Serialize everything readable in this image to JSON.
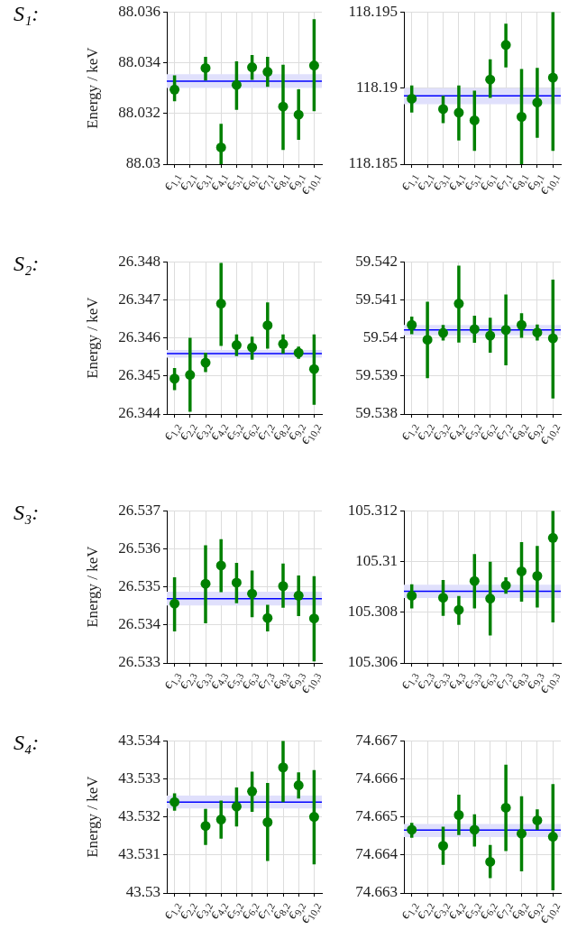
{
  "chart_data": [
    {
      "type": "scatter",
      "title": "S₁:",
      "ylabel": "Energy / keV",
      "categories": [
        "ϵ$_{1,1}$",
        "ϵ$_{2,1}$",
        "ϵ$_{3,1}$",
        "ϵ$_{4,1}$",
        "ϵ$_{5,1}$",
        "ϵ$_{6,1}$",
        "ϵ$_{7,1}$",
        "ϵ$_{8,1}$",
        "ϵ$_{9,1}$",
        "ϵ$_{10,1}$"
      ],
      "series": [
        {
          "color": "#008000",
          "values": [
            88.03294,
            null,
            88.03379,
            88.03066,
            88.03312,
            88.03382,
            88.03364,
            88.03227,
            88.03195,
            88.03389
          ],
          "errors": [
            [
              88.03248,
              88.0335
            ],
            null,
            [
              88.0333,
              88.03423
            ],
            [
              88.03,
              88.03159
            ],
            [
              88.03214,
              88.03405
            ],
            [
              88.03332,
              88.0343
            ],
            [
              88.03305,
              88.03423
            ],
            [
              88.03056,
              88.03392
            ],
            [
              88.03096,
              88.03295
            ],
            [
              88.03209,
              88.03571
            ]
          ]
        }
      ],
      "ylim": [
        88.03,
        88.036
      ],
      "yticks": [
        88.03,
        88.032,
        88.034,
        88.036
      ],
      "grid": true,
      "marker": "circle",
      "ref_lines": [
        {
          "axis": "y",
          "value": 88.03327,
          "color": "#0000ff"
        }
      ],
      "bands": [
        {
          "axis": "y",
          "from": 88.033,
          "to": 88.03355,
          "color": "#e0e0fc"
        }
      ]
    },
    {
      "type": "scatter",
      "categories": [
        "ϵ$_{1,1}$",
        "ϵ$_{2,1}$",
        "ϵ$_{3,1}$",
        "ϵ$_{4,1}$",
        "ϵ$_{5,1}$",
        "ϵ$_{6,1}$",
        "ϵ$_{7,1}$",
        "ϵ$_{8,1}$",
        "ϵ$_{9,1}$",
        "ϵ$_{10,1}$"
      ],
      "series": [
        {
          "color": "#008000",
          "values": [
            118.1893,
            null,
            118.18862,
            118.18839,
            118.18788,
            118.19056,
            118.19283,
            118.18811,
            118.18905,
            118.19068
          ],
          "errors": [
            [
              118.18839,
              118.19017
            ],
            null,
            [
              118.1877,
              118.18949
            ],
            [
              118.18656,
              118.19017
            ],
            [
              118.18587,
              118.18983
            ],
            [
              118.18935,
              118.19189
            ],
            [
              118.19136,
              118.19422
            ],
            [
              118.185,
              118.19125
            ],
            [
              118.18674,
              118.19132
            ],
            [
              118.18587,
              118.195
            ]
          ]
        }
      ],
      "ylim": [
        118.185,
        118.195
      ],
      "yticks": [
        118.185,
        118.19,
        118.195
      ],
      "grid": true,
      "marker": "circle",
      "ref_lines": [
        {
          "axis": "y",
          "value": 118.18949,
          "color": "#0000ff"
        }
      ],
      "bands": [
        {
          "axis": "y",
          "from": 118.18894,
          "to": 118.18999,
          "color": "#e0e0fc"
        }
      ]
    },
    {
      "type": "scatter",
      "title": "S₂:",
      "ylabel": "Energy / keV",
      "categories": [
        "ϵ$_{1,2}$",
        "ϵ$_{2,2}$",
        "ϵ$_{3,2}$",
        "ϵ$_{4,2}$",
        "ϵ$_{5,2}$",
        "ϵ$_{6,2}$",
        "ϵ$_{7,2}$",
        "ϵ$_{8,2}$",
        "ϵ$_{9,2}$",
        "ϵ$_{10,2}$"
      ],
      "series": [
        {
          "color": "#008000",
          "values": [
            26.34493,
            26.34503,
            26.34535,
            26.3469,
            26.34581,
            26.34575,
            26.34633,
            26.34584,
            26.34561,
            26.34518
          ],
          "errors": [
            [
              26.34463,
              26.34521
            ],
            [
              26.34406,
              26.346
            ],
            [
              26.3451,
              26.34561
            ],
            [
              26.34579,
              26.34797
            ],
            [
              26.34552,
              26.34609
            ],
            [
              26.34543,
              26.34603
            ],
            [
              26.34572,
              26.34693
            ],
            [
              26.34559,
              26.34609
            ],
            [
              26.34545,
              26.34577
            ],
            [
              26.34424,
              26.34609
            ]
          ]
        }
      ],
      "ylim": [
        26.344,
        26.348
      ],
      "yticks": [
        26.344,
        26.345,
        26.346,
        26.347,
        26.348
      ],
      "grid": true,
      "marker": "circle",
      "ref_lines": [
        {
          "axis": "y",
          "value": 26.34559,
          "color": "#0000ff"
        }
      ],
      "bands": [
        {
          "axis": "y",
          "from": 26.34548,
          "to": 26.34568,
          "color": "#e0e0fc"
        }
      ]
    },
    {
      "type": "scatter",
      "categories": [
        "ϵ$_{1,2}$",
        "ϵ$_{2,2}$",
        "ϵ$_{3,2}$",
        "ϵ$_{4,2}$",
        "ϵ$_{5,2}$",
        "ϵ$_{6,2}$",
        "ϵ$_{7,2}$",
        "ϵ$_{8,2}$",
        "ϵ$_{9,2}$",
        "ϵ$_{10,2}$"
      ],
      "series": [
        {
          "color": "#008000",
          "values": [
            59.54034,
            59.53995,
            59.54013,
            59.5409,
            59.54023,
            59.54006,
            59.54021,
            59.54034,
            59.54014,
            59.53999
          ],
          "errors": [
            [
              59.5401,
              59.54056
            ],
            [
              59.53894,
              59.54095
            ],
            [
              59.53993,
              59.54034
            ],
            [
              59.53988,
              59.5419
            ],
            [
              59.53987,
              59.54058
            ],
            [
              59.53961,
              59.54053
            ],
            [
              59.53928,
              59.54114
            ],
            [
              59.54,
              59.54065
            ],
            [
              59.53993,
              59.54035
            ],
            [
              59.53841,
              59.54153
            ]
          ]
        }
      ],
      "ylim": [
        59.538,
        59.542
      ],
      "yticks": [
        59.538,
        59.539,
        59.54,
        59.541,
        59.542
      ],
      "grid": true,
      "marker": "circle",
      "ref_lines": [
        {
          "axis": "y",
          "value": 59.54021,
          "color": "#0000ff"
        }
      ],
      "bands": [
        {
          "axis": "y",
          "from": 59.54007,
          "to": 59.54034,
          "color": "#e0e0fc"
        }
      ]
    },
    {
      "type": "scatter",
      "title": "S₃:",
      "ylabel": "Energy / keV",
      "categories": [
        "ϵ$_{1,3}$",
        "ϵ$_{2,3}$",
        "ϵ$_{3,3}$",
        "ϵ$_{4,3}$",
        "ϵ$_{5,3}$",
        "ϵ$_{6,3}$",
        "ϵ$_{7,3}$",
        "ϵ$_{8,3}$",
        "ϵ$_{9,3}$",
        "ϵ$_{10,3}$"
      ],
      "series": [
        {
          "color": "#008000",
          "values": [
            26.53456,
            null,
            26.53508,
            26.53556,
            26.53511,
            26.53482,
            26.53418,
            26.53502,
            26.53477,
            26.53417
          ],
          "errors": [
            [
              26.53383,
              26.53525
            ],
            null,
            [
              26.53404,
              26.53609
            ],
            [
              26.53486,
              26.53625
            ],
            [
              26.53457,
              26.53563
            ],
            [
              26.5342,
              26.53543
            ],
            [
              26.53383,
              26.53453
            ],
            [
              26.53445,
              26.53561
            ],
            [
              26.53423,
              26.5353
            ],
            [
              26.53304,
              26.53528
            ]
          ]
        }
      ],
      "ylim": [
        26.533,
        26.537
      ],
      "yticks": [
        26.533,
        26.534,
        26.535,
        26.536,
        26.537
      ],
      "grid": true,
      "marker": "circle",
      "ref_lines": [
        {
          "axis": "y",
          "value": 26.53469,
          "color": "#0000ff"
        }
      ],
      "bands": [
        {
          "axis": "y",
          "from": 26.53451,
          "to": 26.53487,
          "color": "#e0e0fc"
        }
      ]
    },
    {
      "type": "scatter",
      "categories": [
        "ϵ$_{1,3}$",
        "ϵ$_{2,3}$",
        "ϵ$_{3,3}$",
        "ϵ$_{4,3}$",
        "ϵ$_{5,3}$",
        "ϵ$_{6,3}$",
        "ϵ$_{7,3}$",
        "ϵ$_{8,3}$",
        "ϵ$_{9,3}$",
        "ϵ$_{10,3}$"
      ],
      "series": [
        {
          "color": "#008000",
          "values": [
            105.30865,
            null,
            105.30857,
            105.30809,
            105.30923,
            105.30854,
            105.30906,
            105.30961,
            105.30943,
            105.31093
          ],
          "errors": [
            [
              105.30815,
              105.3091
            ],
            null,
            [
              105.30786,
              105.30927
            ],
            [
              105.3075,
              105.30864
            ],
            [
              105.30815,
              105.31029
            ],
            [
              105.30708,
              105.30999
            ],
            [
              105.30873,
              105.30938
            ],
            [
              105.30842,
              105.31076
            ],
            [
              105.30819,
              105.31061
            ],
            [
              105.3076,
              105.312
            ]
          ]
        }
      ],
      "ylim": [
        105.306,
        105.312
      ],
      "yticks": [
        105.306,
        105.308,
        105.31,
        105.312
      ],
      "grid": true,
      "marker": "circle",
      "ref_lines": [
        {
          "axis": "y",
          "value": 105.30883,
          "color": "#0000ff"
        }
      ],
      "bands": [
        {
          "axis": "y",
          "from": 105.30856,
          "to": 105.30908,
          "color": "#e0e0fc"
        }
      ]
    },
    {
      "type": "scatter",
      "title": "S₄:",
      "ylabel": "Energy / keV",
      "categories": [
        "ϵ$_{1,2}$",
        "ϵ$_{2,2}$",
        "ϵ$_{3,2}$",
        "ϵ$_{4,2}$",
        "ϵ$_{5,2}$",
        "ϵ$_{6,2}$",
        "ϵ$_{7,2}$",
        "ϵ$_{8,2}$",
        "ϵ$_{9,2}$",
        "ϵ$_{10,2}$"
      ],
      "series": [
        {
          "color": "#008000",
          "values": [
            43.53239,
            null,
            43.53176,
            43.53193,
            43.53227,
            43.53267,
            43.53186,
            43.5333,
            43.53283,
            43.532
          ],
          "errors": [
            [
              43.53216,
              43.53262
            ],
            null,
            [
              43.53126,
              43.53221
            ],
            [
              43.53143,
              43.53243
            ],
            [
              43.53175,
              43.53277
            ],
            [
              43.53213,
              43.53319
            ],
            [
              43.53084,
              43.53289
            ],
            [
              43.53239,
              43.534
            ],
            [
              43.53248,
              43.53317
            ],
            [
              43.53075,
              43.53323
            ]
          ]
        }
      ],
      "ylim": [
        43.53,
        43.534
      ],
      "yticks": [
        43.53,
        43.531,
        43.532,
        43.533,
        43.534
      ],
      "grid": true,
      "marker": "circle",
      "ref_lines": [
        {
          "axis": "y",
          "value": 43.53239,
          "color": "#0000ff"
        }
      ],
      "bands": [
        {
          "axis": "y",
          "from": 43.53222,
          "to": 43.53256,
          "color": "#e0e0fc"
        }
      ]
    },
    {
      "type": "scatter",
      "categories": [
        "ϵ$_{1,2}$",
        "ϵ$_{2,2}$",
        "ϵ$_{3,2}$",
        "ϵ$_{4,2}$",
        "ϵ$_{5,2}$",
        "ϵ$_{6,2}$",
        "ϵ$_{7,2}$",
        "ϵ$_{8,2}$",
        "ϵ$_{9,2}$",
        "ϵ$_{10,2}$"
      ],
      "series": [
        {
          "color": "#008000",
          "values": [
            74.66466,
            null,
            74.66424,
            74.66505,
            74.66466,
            74.66382,
            74.66524,
            74.66456,
            74.66491,
            74.66448
          ],
          "errors": [
            [
              74.66445,
              74.66484
            ],
            null,
            [
              74.66374,
              74.66474
            ],
            [
              74.66452,
              74.66558
            ],
            [
              74.66422,
              74.66507
            ],
            [
              74.66339,
              74.66426
            ],
            [
              74.6641,
              74.66637
            ],
            [
              74.66357,
              74.66554
            ],
            [
              74.66466,
              74.6652
            ],
            [
              74.66307,
              74.66586
            ]
          ]
        }
      ],
      "ylim": [
        74.663,
        74.667
      ],
      "yticks": [
        74.663,
        74.664,
        74.665,
        74.666,
        74.667
      ],
      "grid": true,
      "marker": "circle",
      "ref_lines": [
        {
          "axis": "y",
          "value": 74.66465,
          "color": "#0000ff"
        }
      ],
      "bands": [
        {
          "axis": "y",
          "from": 74.66447,
          "to": 74.66481,
          "color": "#e0e0fc"
        }
      ]
    }
  ]
}
